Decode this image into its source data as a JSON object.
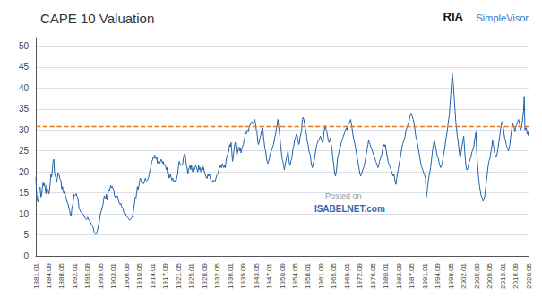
{
  "chart_data": {
    "type": "line",
    "title": "CAPE 10 Valuation",
    "color": "#2060a8",
    "ylim": [
      0,
      52
    ],
    "yticks": [
      0,
      5,
      10,
      15,
      20,
      25,
      30,
      35,
      40,
      45,
      50
    ],
    "grid": true,
    "reference_lines": [
      {
        "y": 30.8,
        "color": "#e07820",
        "line_style": "dashed"
      }
    ],
    "annotations": [
      "Posted on",
      "ISABELNET.com",
      "RIA",
      "SimpleVisor"
    ],
    "categories": [
      "1881.01",
      null,
      null,
      null,
      null,
      null,
      null,
      null,
      null,
      null,
      null,
      null,
      null,
      null,
      null,
      null,
      null,
      null,
      "1884.09",
      null,
      null,
      null,
      null,
      null,
      null,
      null,
      null,
      null,
      null,
      null,
      null,
      null,
      null,
      null,
      null,
      null,
      "1888.05",
      null,
      null,
      null,
      null,
      null,
      null,
      null,
      null,
      null,
      null,
      null,
      null,
      null,
      null,
      null,
      null,
      null,
      "1892.01",
      null,
      null,
      null,
      null,
      null,
      null,
      null,
      null,
      null,
      null,
      null,
      null,
      null,
      null,
      null,
      null,
      null,
      "1895.09",
      null,
      null,
      null,
      null,
      null,
      null,
      null,
      null,
      null,
      null,
      null,
      null,
      null,
      null,
      null,
      null,
      null,
      "1899.05",
      null,
      null,
      null,
      null,
      null,
      null,
      null,
      null,
      null,
      null,
      null,
      null,
      null,
      null,
      null,
      null,
      null,
      "1903.01",
      null,
      null,
      null,
      null,
      null,
      null,
      null,
      null,
      null,
      null,
      null,
      null,
      null,
      null,
      null,
      null,
      null,
      "1906.09",
      null,
      null,
      null,
      null,
      null,
      null,
      null,
      null,
      null,
      null,
      null,
      null,
      null,
      null,
      null,
      null,
      null,
      "1910.05",
      null,
      null,
      null,
      null,
      null,
      null,
      null,
      null,
      null,
      null,
      null,
      null,
      null,
      null,
      null,
      null,
      null,
      "1914.01",
      null,
      null,
      null,
      null,
      null,
      null,
      null,
      null,
      null,
      null,
      null,
      null,
      null,
      null,
      null,
      null,
      null,
      "1917.09",
      null,
      null,
      null,
      null,
      null,
      null,
      null,
      null,
      null,
      null,
      null,
      null,
      null,
      null,
      null,
      null,
      null,
      "1921.05",
      null,
      null,
      null,
      null,
      null,
      null,
      null,
      null,
      null,
      null,
      null,
      null,
      null,
      null,
      null,
      null,
      null,
      "1925.01",
      null,
      null,
      null,
      null,
      null,
      null,
      null,
      null,
      null,
      null,
      null,
      null,
      null,
      null,
      null,
      null,
      null,
      "1928.09",
      null,
      null,
      null,
      null,
      null,
      null,
      null,
      null,
      null,
      null,
      null,
      null,
      null,
      null,
      null,
      null,
      null,
      "1932.05",
      null,
      null,
      null,
      null,
      null,
      null,
      null,
      null,
      null,
      null,
      null,
      null,
      null,
      null,
      null,
      null,
      null,
      "1936.01",
      null,
      null,
      null,
      null,
      null,
      null,
      null,
      null,
      null,
      null,
      null,
      null,
      null,
      null,
      null,
      null,
      null,
      "1939.09",
      null,
      null,
      null,
      null,
      null,
      null,
      null,
      null,
      null,
      null,
      null,
      null,
      null,
      null,
      null,
      null,
      null,
      "1943.05",
      null,
      null,
      null,
      null,
      null,
      null,
      null,
      null,
      null,
      null,
      null,
      null,
      null,
      null,
      null,
      null,
      null,
      "1947.01",
      null,
      null,
      null,
      null,
      null,
      null,
      null,
      null,
      null,
      null,
      null,
      null,
      null,
      null,
      null,
      null,
      null,
      "1950.09",
      null,
      null,
      null,
      null,
      null,
      null,
      null,
      null,
      null,
      null,
      null,
      null,
      null,
      null,
      null,
      null,
      null,
      "1954.05",
      null,
      null,
      null,
      null,
      null,
      null,
      null,
      null,
      null,
      null,
      null,
      null,
      null,
      null,
      null,
      null,
      null,
      "1958.01",
      null,
      null,
      null,
      null,
      null,
      null,
      null,
      null,
      null,
      null,
      null,
      null,
      null,
      null,
      null,
      null,
      null,
      "1961.09",
      null,
      null,
      null,
      null,
      null,
      null,
      null,
      null,
      null,
      null,
      null,
      null,
      null,
      null,
      null,
      null,
      null,
      "1965.05",
      null,
      null,
      null,
      null,
      null,
      null,
      null,
      null,
      null,
      null,
      null,
      null,
      null,
      null,
      null,
      null,
      null,
      "1969.01",
      null,
      null,
      null,
      null,
      null,
      null,
      null,
      null,
      null,
      null,
      null,
      null,
      null,
      null,
      null,
      null,
      null,
      "1972.09",
      null,
      null,
      null,
      null,
      null,
      null,
      null,
      null,
      null,
      null,
      null,
      null,
      null,
      null,
      null,
      null,
      null,
      "1976.05",
      null,
      null,
      null,
      null,
      null,
      null,
      null,
      null,
      null,
      null,
      null,
      null,
      null,
      null,
      null,
      null,
      null,
      "1980.01",
      null,
      null,
      null,
      null,
      null,
      null,
      null,
      null,
      null,
      null,
      null,
      null,
      null,
      null,
      null,
      null,
      null,
      "1983.09",
      null,
      null,
      null,
      null,
      null,
      null,
      null,
      null,
      null,
      null,
      null,
      null,
      null,
      null,
      null,
      null,
      null,
      "1987.05",
      null,
      null,
      null,
      null,
      null,
      null,
      null,
      null,
      null,
      null,
      null,
      null,
      null,
      null,
      null,
      null,
      null,
      "1991.01",
      null,
      null,
      null,
      null,
      null,
      null,
      null,
      null,
      null,
      null,
      null,
      null,
      null,
      null,
      null,
      null,
      null,
      "1994.09",
      null,
      null,
      null,
      null,
      null,
      null,
      null,
      null,
      null,
      null,
      null,
      null,
      null,
      null,
      null,
      null,
      null,
      "1998.05",
      null,
      null,
      null,
      null,
      null,
      null,
      null,
      null,
      null,
      null,
      null,
      null,
      null,
      null,
      null,
      null,
      null,
      "2002.01",
      null,
      null,
      null,
      null,
      null,
      null,
      null,
      null,
      null,
      null,
      null,
      null,
      null,
      null,
      null,
      null,
      null,
      "2005.09",
      null,
      null,
      null,
      null,
      null,
      null,
      null,
      null,
      null,
      null,
      null,
      null,
      null,
      null,
      null,
      null,
      null,
      "2009.05",
      null,
      null,
      null,
      null,
      null,
      null,
      null,
      null,
      null,
      null,
      null,
      null,
      null,
      null,
      null,
      null,
      null,
      "2013.01",
      null,
      null,
      null,
      null,
      null,
      null,
      null,
      null,
      null,
      null,
      null,
      null,
      null,
      null,
      null,
      null,
      null,
      "2016.09",
      null,
      null,
      null,
      null,
      null,
      null,
      null,
      null,
      null,
      null,
      null,
      null,
      null,
      null,
      null,
      null,
      null,
      "2020.05"
    ],
    "values": [
      18.7,
      14.8,
      13.4,
      12.8,
      13.9,
      16.2,
      16.4,
      14.0,
      14.4,
      16.2,
      17.4,
      16.7,
      17.2,
      16.0,
      14.8,
      16.8,
      15.6,
      15.8,
      14.7,
      15.5,
      17.5,
      19.5,
      18.8,
      20.7,
      22.5,
      23.0,
      19.8,
      19.1,
      18.5,
      17.5,
      18.7,
      19.8,
      19.5,
      18.6,
      18.2,
      17.7,
      15.9,
      16.5,
      15.3,
      14.8,
      15.5,
      14.3,
      13.8,
      13.0,
      12.6,
      12.2,
      11.2,
      10.7,
      9.7,
      9.5,
      11.3,
      12.0,
      13.1,
      14.6,
      14.3,
      14.5,
      14.8,
      14.2,
      14.0,
      12.9,
      11.2,
      11.0,
      10.5,
      10.4,
      10.1,
      10.0,
      9.8,
      9.6,
      9.1,
      8.8,
      8.6,
      8.8,
      9.2,
      8.7,
      8.4,
      8.2,
      8.0,
      7.5,
      7.2,
      7.0,
      6.5,
      5.6,
      5.3,
      5.1,
      5.2,
      5.8,
      6.5,
      7.3,
      8.0,
      9.5,
      10.2,
      10.8,
      11.5,
      12.0,
      13.2,
      14.3,
      14.0,
      13.5,
      14.7,
      13.2,
      14.5,
      15.8,
      15.5,
      16.0,
      16.8,
      16.2,
      16.5,
      16.0,
      15.8,
      14.5,
      14.0,
      13.8,
      14.0,
      14.3,
      13.8,
      13.0,
      12.5,
      12.2,
      12.5,
      11.8,
      11.5,
      11.2,
      10.5,
      10.0,
      10.2,
      9.8,
      9.5,
      9.2,
      9.0,
      8.8,
      8.5,
      8.6,
      8.8,
      9.0,
      9.5,
      10.0,
      11.5,
      12.5,
      14.0,
      13.8,
      15.0,
      16.5,
      15.8,
      16.5,
      17.8,
      18.5,
      18.0,
      17.5,
      17.2,
      17.5,
      17.2,
      17.8,
      18.5,
      18.0,
      17.8,
      18.0,
      18.5,
      19.0,
      20.0,
      20.5,
      21.5,
      22.5,
      22.8,
      23.5,
      23.2,
      24.0,
      23.5,
      23.0,
      23.5,
      22.0,
      22.5,
      22.0,
      22.0,
      22.5,
      23.0,
      22.5,
      22.0,
      22.5,
      21.5,
      21.8,
      21.5,
      20.5,
      21.0,
      19.5,
      19.8,
      18.5,
      19.0,
      19.5,
      18.5,
      18.0,
      18.5,
      18.0,
      17.5,
      18.0,
      17.5,
      18.0,
      19.0,
      19.5,
      21.5,
      22.5,
      22.0,
      21.5,
      21.8,
      21.5,
      22.0,
      23.5,
      24.0,
      24.5,
      23.0,
      21.5,
      21.0,
      19.5,
      20.5,
      21.0,
      21.5,
      20.5,
      21.5,
      20.5,
      20.0,
      21.0,
      20.5,
      21.0,
      21.5,
      21.0,
      20.5,
      20.0,
      21.5,
      20.5,
      21.0,
      20.0,
      20.5,
      21.5,
      20.5,
      21.0,
      20.0,
      19.5,
      19.0,
      18.5,
      18.5,
      19.5,
      19.0,
      19.5,
      18.5,
      18.0,
      17.5,
      17.5,
      18.0,
      18.0,
      17.5,
      17.8,
      18.5,
      19.0,
      19.5,
      19.5,
      20.5,
      21.5,
      21.0,
      21.5,
      21.0,
      22.0,
      21.5,
      21.0,
      21.5,
      21.0,
      22.5,
      23.5,
      24.0,
      24.5,
      25.0,
      26.5,
      26.0,
      27.0,
      25.0,
      22.5,
      23.5,
      25.0,
      26.5,
      27.0,
      25.5,
      24.0,
      24.5,
      25.5,
      26.0,
      25.0,
      25.5,
      24.5,
      25.5,
      26.0,
      26.5,
      27.5,
      28.0,
      29.5,
      29.0,
      29.5,
      30.0,
      29.5,
      30.5,
      31.0,
      31.5,
      31.5,
      32.0,
      31.5,
      31.5,
      32.0,
      32.5,
      31.5,
      30.0,
      29.5,
      27.5,
      26.5,
      27.0,
      28.0,
      28.5,
      29.5,
      30.0,
      30.5,
      28.5,
      27.0,
      25.5,
      25.0,
      23.5,
      22.5,
      22.0,
      22.5,
      23.0,
      24.0,
      24.5,
      25.0,
      25.5,
      26.0,
      26.5,
      27.5,
      28.5,
      29.0,
      30.5,
      31.0,
      32.5,
      31.0,
      29.5,
      28.0,
      26.0,
      24.5,
      23.0,
      22.5,
      21.5,
      20.5,
      21.5,
      22.5,
      23.5,
      24.0,
      25.0,
      23.5,
      22.0,
      21.5,
      22.5,
      23.0,
      24.0,
      25.5,
      26.0,
      27.5,
      28.0,
      28.5,
      29.0,
      28.5,
      27.5,
      26.5,
      27.0,
      28.5,
      29.0,
      30.0,
      32.5,
      33.0,
      32.5,
      31.5,
      30.5,
      29.5,
      28.5,
      27.0,
      26.5,
      25.0,
      24.5,
      24.0,
      22.5,
      21.5,
      21.0,
      22.0,
      22.5,
      23.0,
      24.5,
      25.5,
      26.5,
      27.0,
      27.5,
      27.5,
      28.0,
      28.5,
      28.0,
      27.5,
      27.0,
      27.5,
      29.5,
      30.5,
      31.0,
      30.0,
      29.5,
      28.5,
      27.5,
      27.0,
      27.5,
      28.0,
      26.5,
      25.5,
      24.0,
      22.5,
      21.0,
      19.5,
      19.0,
      20.0,
      21.5,
      23.5,
      24.0,
      25.0,
      25.5,
      26.0,
      27.0,
      27.5,
      28.0,
      28.5,
      29.0,
      29.5,
      30.0,
      30.5,
      30.0,
      31.0,
      31.5,
      31.5,
      32.0,
      32.5,
      31.5,
      30.5,
      29.0,
      28.0,
      27.5,
      26.5,
      25.5,
      24.5,
      23.5,
      22.5,
      21.5,
      20.5,
      19.5,
      19.0,
      19.5,
      20.0,
      20.5,
      21.0,
      21.5,
      22.5,
      23.5,
      24.5,
      25.5,
      26.5,
      27.5,
      27.0,
      26.5,
      26.0,
      25.5,
      25.0,
      24.5,
      24.0,
      23.5,
      23.0,
      22.5,
      22.0,
      21.5,
      21.0,
      21.5,
      22.5,
      23.0,
      23.5,
      24.0,
      25.0,
      26.0,
      26.5,
      26.0,
      26.5,
      25.5,
      24.5,
      23.5,
      22.5,
      22.0,
      21.5,
      21.0,
      20.5,
      20.0,
      19.5,
      19.0,
      19.5,
      18.5,
      17.5,
      17.0,
      18.5,
      19.5,
      20.5,
      21.5,
      22.5,
      23.5,
      24.5,
      25.5,
      26.5,
      27.0,
      27.5,
      28.0,
      29.0,
      30.0,
      30.5,
      31.0,
      31.5,
      32.0,
      33.0,
      33.5,
      34.0,
      33.5,
      33.0,
      32.5,
      31.5,
      30.5,
      29.0,
      28.0,
      27.5,
      26.5,
      25.5,
      24.5,
      23.5,
      22.5,
      21.5,
      21.0,
      20.5,
      20.0,
      19.5,
      19.0,
      18.5,
      14.0,
      15.0,
      16.5,
      18.0,
      19.0,
      20.0,
      21.0,
      22.5,
      24.0,
      25.5,
      26.5,
      27.5,
      27.0,
      26.0,
      25.0,
      24.0,
      23.5,
      23.0,
      22.0,
      21.5,
      21.0,
      21.5,
      22.0,
      23.0,
      24.0,
      25.0,
      26.0,
      27.5,
      28.5,
      29.5,
      31.0,
      32.5,
      33.5,
      36.0,
      38.5,
      41.0,
      43.5,
      42.0,
      40.0,
      37.0,
      34.5,
      32.0,
      30.5,
      28.5,
      27.5,
      26.0,
      24.5,
      23.5,
      24.0,
      25.5,
      26.5,
      27.5,
      28.5,
      26.0,
      23.5,
      21.5,
      20.5,
      20.5,
      21.0,
      22.0,
      22.5,
      23.0,
      23.5,
      24.5,
      25.0,
      25.5,
      26.0,
      27.5,
      28.5,
      29.5,
      25.0,
      22.0,
      20.0,
      18.0,
      16.5,
      15.5,
      14.5,
      14.0,
      13.5,
      13.0,
      13.5,
      14.0,
      15.5,
      17.0,
      18.5,
      20.0,
      21.5,
      22.5,
      23.0,
      24.0,
      25.0,
      26.0,
      27.5,
      26.5,
      25.5,
      24.5,
      24.0,
      23.5,
      24.0,
      25.0,
      26.0,
      27.5,
      28.5,
      30.0,
      31.0,
      32.0,
      31.5,
      30.5,
      29.0,
      28.0,
      27.5,
      26.5,
      26.0,
      25.5,
      25.0,
      25.5,
      26.5,
      28.0,
      29.5,
      30.5,
      31.5,
      31.0,
      30.5,
      29.5,
      30.5,
      31.0,
      31.5,
      32.0,
      32.5,
      32.0,
      31.0,
      30.0,
      30.5,
      31.5,
      33.0,
      34.5,
      38.0,
      30.0,
      30.5,
      30.5,
      29.0,
      29.5,
      28.5
    ]
  }
}
